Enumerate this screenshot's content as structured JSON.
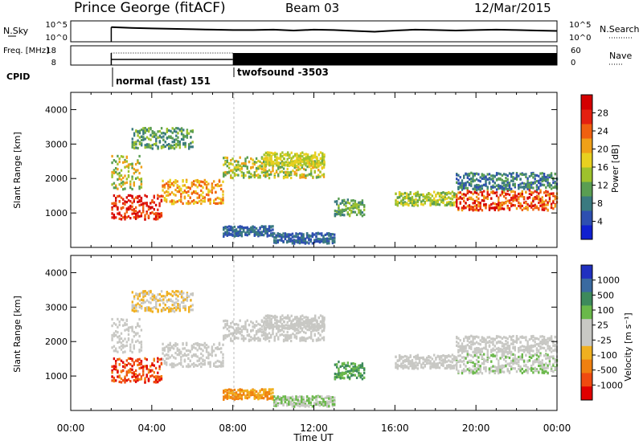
{
  "header": {
    "title": "Prince George (fitACF)",
    "beam": "Beam 03",
    "date": "12/Mar/2015"
  },
  "colors": {
    "panel_border": "#000000"
  },
  "chart_data": [
    {
      "type": "line",
      "name": "noise-panel",
      "left_label": "N.Sky",
      "right_label": "N.Search",
      "yticks": [
        "10^5",
        "10^0"
      ],
      "right_yticks": [
        "10^5",
        "10^0"
      ],
      "x": [
        "02:00",
        "03:00",
        "04:00",
        "05:00",
        "06:00",
        "07:00",
        "08:00",
        "09:00",
        "10:00",
        "11:00",
        "12:00",
        "13:00",
        "14:00",
        "15:00",
        "16:00",
        "17:00",
        "18:00",
        "19:00",
        "20:00",
        "21:00",
        "22:00",
        "23:00",
        "24:00"
      ],
      "series": [
        {
          "values": [
            3.5,
            3.3,
            3.2,
            3.1,
            3.0,
            2.9,
            2.8,
            2.8,
            2.9,
            2.7,
            2.9,
            2.8,
            2.6,
            2.4,
            2.7,
            2.9,
            2.8,
            2.7,
            2.8,
            2.9,
            2.8,
            2.7,
            2.6
          ]
        }
      ]
    },
    {
      "type": "line",
      "name": "freq-panel",
      "left_label": "Freq. [MHz]",
      "right_label": "Nave",
      "yticks": [
        "18",
        "8"
      ],
      "right_yticks": [
        "60",
        "0"
      ],
      "cpid_label": "CPID",
      "cpid_segments": [
        {
          "label": "normal (fast) 151",
          "start": "02:00"
        },
        {
          "label": "twofsound -3503",
          "start": "08:00"
        }
      ]
    },
    {
      "type": "heatmap",
      "name": "power-panel",
      "ylabel": "Slant Range [km]",
      "yticks": [
        1000,
        2000,
        3000,
        4000
      ],
      "ylim": [
        0,
        4500
      ],
      "colorbar_label": "Power [dB]",
      "colorbar_ticks": [
        4,
        8,
        12,
        16,
        20,
        24,
        28
      ],
      "colorbar_colors": [
        "#1020d0",
        "#2e4fb0",
        "#3a7a80",
        "#5a9e52",
        "#9ec22c",
        "#e8d020",
        "#f0a018",
        "#f06010",
        "#e42010",
        "#d40000"
      ]
    },
    {
      "type": "heatmap",
      "name": "velocity-panel",
      "ylabel": "Slant Range [km]",
      "yticks": [
        1000,
        2000,
        3000,
        4000
      ],
      "ylim": [
        0,
        4500
      ],
      "xlabel": "Time UT",
      "xticks": [
        "00:00",
        "04:00",
        "08:00",
        "12:00",
        "16:00",
        "20:00",
        "00:00"
      ],
      "colorbar_label": "Velocity [m s⁻¹]",
      "colorbar_ticks": [
        "1000",
        "500",
        "100",
        "25",
        "-25",
        "-100",
        "-500",
        "-1000"
      ],
      "colorbar_colors": [
        "#2030c0",
        "#3a6aa0",
        "#3d8a5c",
        "#6ab84a",
        "#c8c8c4",
        "#c8c8c4",
        "#f0b020",
        "#f08010",
        "#f04a10",
        "#e00000"
      ]
    }
  ]
}
